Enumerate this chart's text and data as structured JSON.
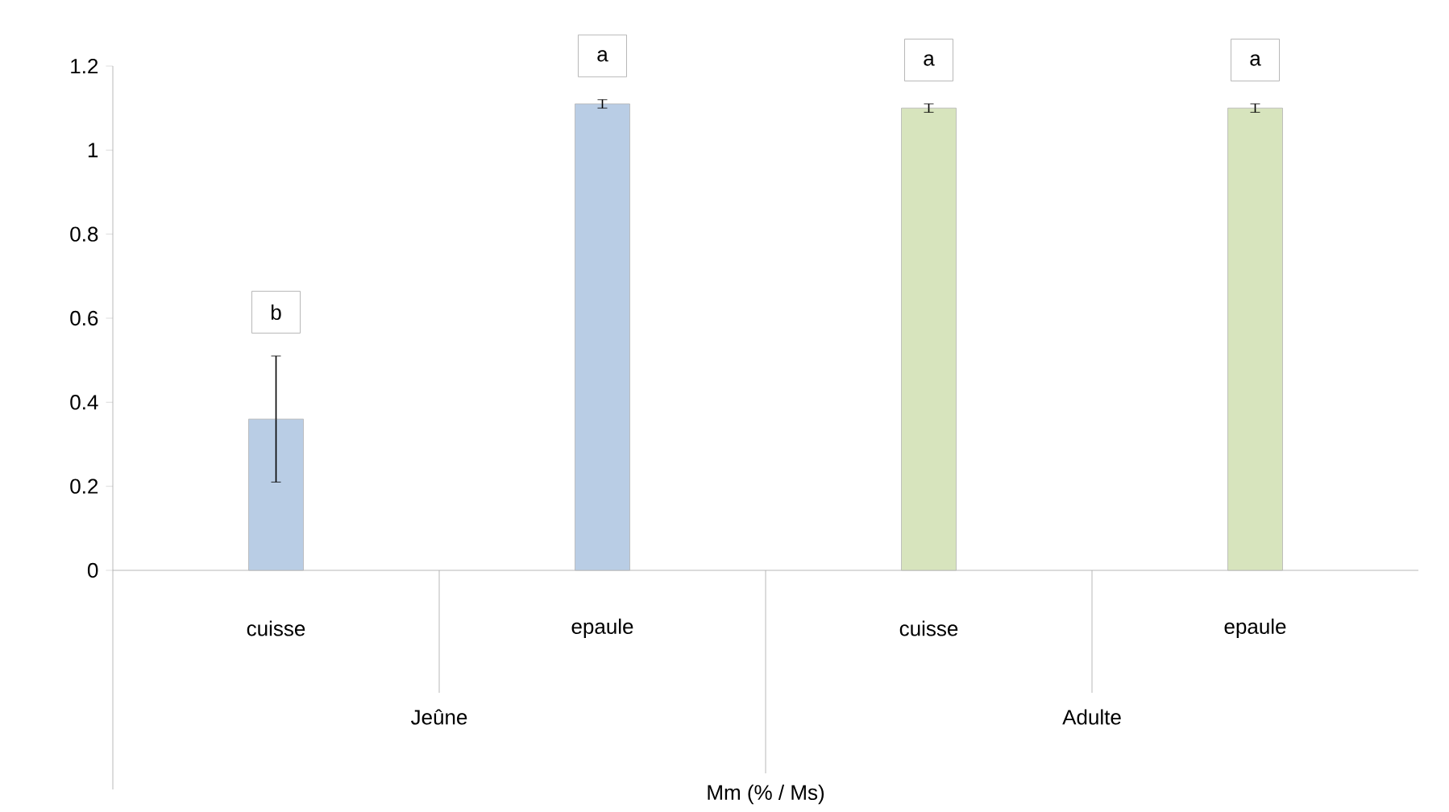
{
  "chart_data": {
    "type": "bar",
    "categories": [
      "cuisse",
      "epaule",
      "cuisse",
      "epaule"
    ],
    "values": [
      0.36,
      1.11,
      1.1,
      1.1
    ],
    "errors": [
      0.15,
      0.01,
      0.01,
      0.01
    ],
    "colors": [
      "#b9cde5",
      "#b9cde5",
      "#d7e4bd",
      "#d7e4bd"
    ],
    "annotations": [
      "b",
      "a",
      "a",
      "a",
      "Jeûne",
      "Adulte",
      "Mm (% / Ms)"
    ],
    "ylim": [
      0,
      1.2
    ],
    "yticks": [
      0,
      0.2,
      0.4,
      0.6,
      0.8,
      1,
      1.2
    ],
    "grid": false
  }
}
